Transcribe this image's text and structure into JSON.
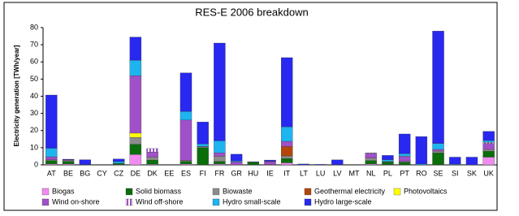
{
  "chart_data": {
    "type": "stacked-bar",
    "title": "RES-E 2006 breakdown",
    "y_label": "Electricity generation [TWh/year]",
    "categories": [
      "AT",
      "BE",
      "BG",
      "CY",
      "CZ",
      "DE",
      "DK",
      "EE",
      "ES",
      "FI",
      "FR",
      "GR",
      "HU",
      "IE",
      "IT",
      "LT",
      "LU",
      "LV",
      "MT",
      "NL",
      "PL",
      "PT",
      "RO",
      "SE",
      "SI",
      "SK",
      "UK"
    ],
    "ylim": [
      0,
      80
    ],
    "yticks": [
      0,
      10,
      20,
      30,
      40,
      50,
      60,
      70,
      80
    ],
    "grid": false,
    "series": [
      {
        "name": "Biogas",
        "color": "#f08cf0",
        "values": [
          0.5,
          0.5,
          0,
          0,
          0.2,
          6,
          0.3,
          0,
          0.5,
          0,
          0.5,
          0,
          0.1,
          0.2,
          1.2,
          0,
          0,
          0,
          0,
          0.5,
          0.2,
          0.1,
          0,
          0,
          0,
          0,
          4.5
        ]
      },
      {
        "name": "Solid biomass",
        "color": "#0a6e0a",
        "values": [
          2,
          1.5,
          0,
          0,
          0.7,
          6,
          2.5,
          0,
          1.5,
          10,
          1.5,
          0,
          1.5,
          0,
          2.5,
          0,
          0,
          0,
          0,
          2,
          1.5,
          1.5,
          0,
          7,
          0,
          0,
          3.5
        ]
      },
      {
        "name": "Biowaste",
        "color": "#8c8c8c",
        "values": [
          0.5,
          0.6,
          0,
          0,
          0,
          4,
          1.7,
          0,
          0.5,
          0.5,
          3,
          0,
          0,
          0,
          1.5,
          0,
          0,
          0,
          0,
          1.5,
          0,
          0.4,
          0,
          1,
          0,
          0,
          1
        ]
      },
      {
        "name": "Geothermal electricity",
        "color": "#b4460a",
        "values": [
          0,
          0,
          0,
          0,
          0,
          0,
          0,
          0,
          0,
          0,
          0,
          0,
          0,
          0,
          5.5,
          0,
          0,
          0,
          0,
          0,
          0,
          0,
          0,
          0,
          0,
          0,
          0
        ]
      },
      {
        "name": "Photovoltaics",
        "color": "#ffff00",
        "values": [
          0,
          0,
          0,
          0,
          0,
          2.5,
          0,
          0,
          0.1,
          0,
          0,
          0,
          0,
          0,
          0,
          0,
          0,
          0,
          0,
          0,
          0,
          0,
          0,
          0,
          0,
          0,
          0
        ]
      },
      {
        "name": "Wind on-shore",
        "color": "#a050c8",
        "values": [
          1.7,
          0.4,
          0,
          0,
          0,
          33.5,
          3,
          0,
          23.5,
          0.2,
          2,
          1.7,
          0,
          1.7,
          3,
          0,
          0,
          0,
          0,
          2.7,
          0.3,
          3,
          0,
          1,
          0,
          0,
          3.5
        ]
      },
      {
        "name": "Wind off-shore",
        "color": "#a050c8",
        "hatch": true,
        "values": [
          0,
          0,
          0,
          0,
          0,
          0,
          2,
          0,
          0,
          0,
          0,
          0,
          0,
          0,
          0,
          0,
          0,
          0,
          0,
          0.3,
          0,
          0,
          0,
          0,
          0,
          0,
          0.7
        ]
      },
      {
        "name": "Hydro small-scale",
        "color": "#1eb4f0",
        "values": [
          5,
          0,
          0.2,
          0,
          1,
          9,
          0,
          0,
          5,
          1.5,
          7,
          0.5,
          0,
          0.2,
          8.5,
          0,
          0,
          0.1,
          0,
          0,
          1,
          1.5,
          0.5,
          3.5,
          0.4,
          0,
          1
        ]
      },
      {
        "name": "Hydro large-scale",
        "color": "#2828f0",
        "values": [
          31,
          0.3,
          2.8,
          0,
          1.5,
          13.5,
          0,
          0,
          22.5,
          12.8,
          57,
          4,
          0.2,
          0.7,
          40.3,
          0.5,
          0.3,
          2.8,
          0,
          0,
          2.5,
          11.5,
          16,
          65.5,
          4.1,
          4.5,
          5.3
        ]
      }
    ]
  }
}
